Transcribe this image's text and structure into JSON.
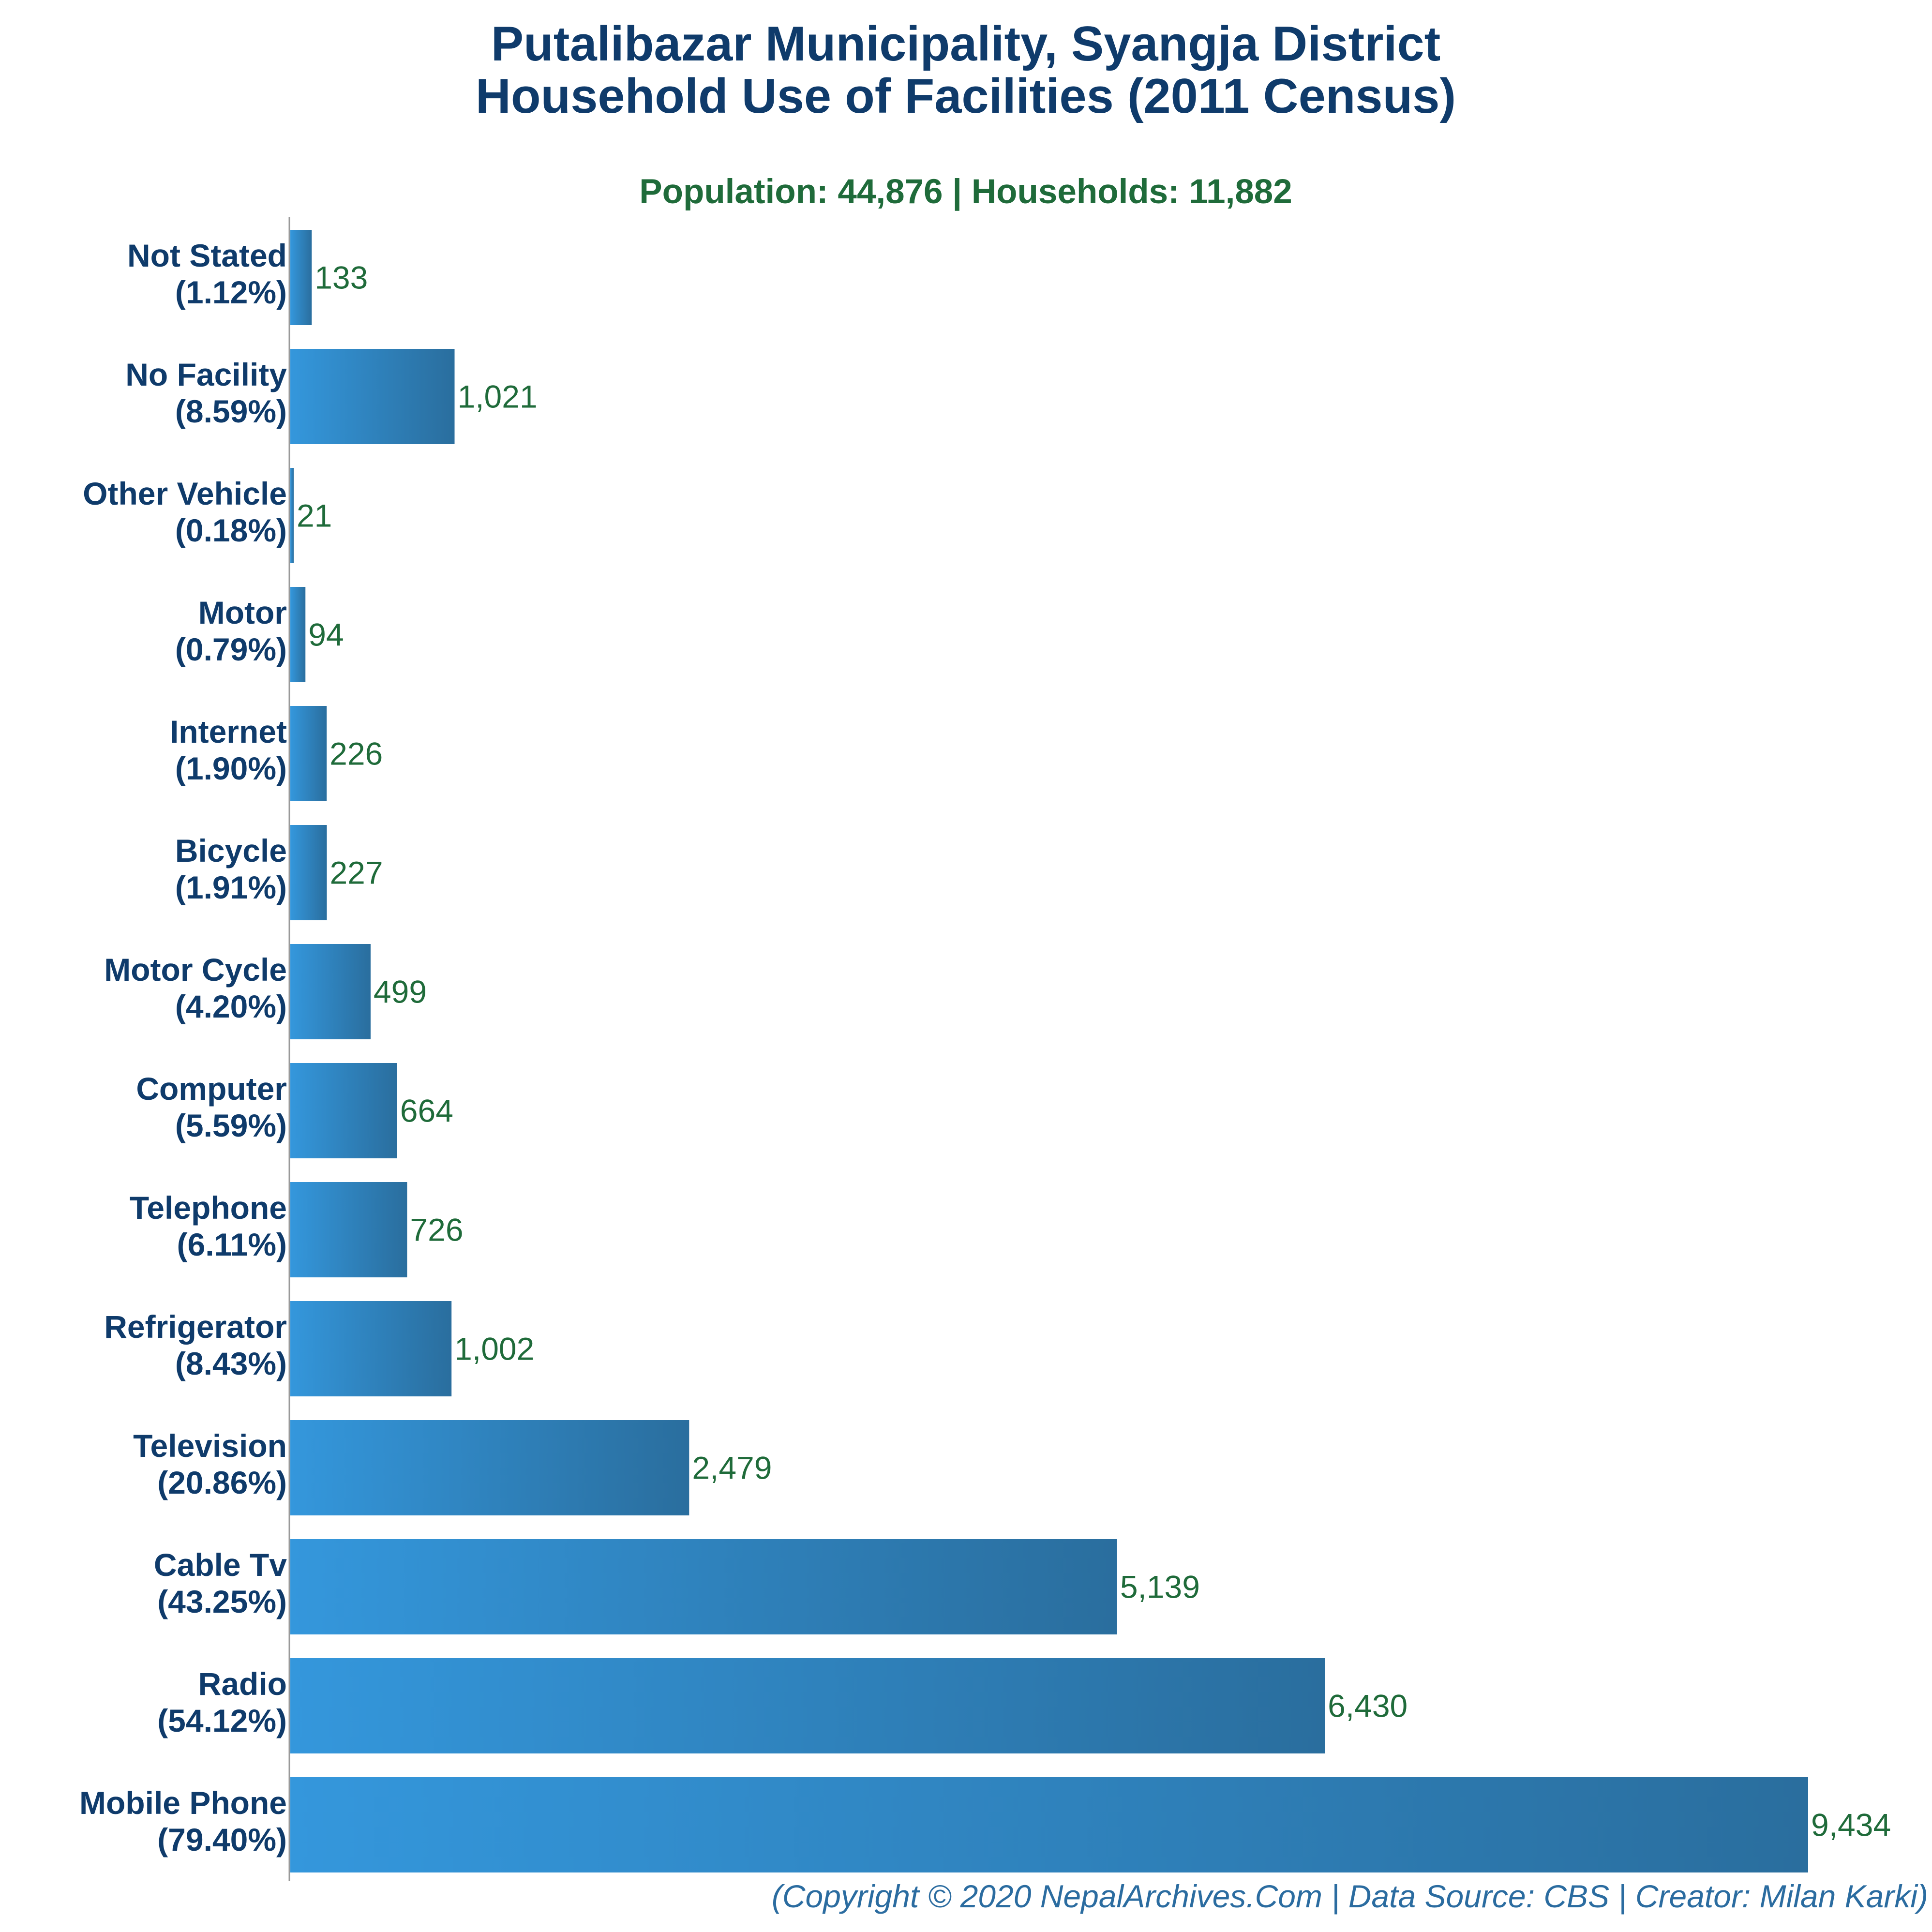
{
  "colors": {
    "title": "#0f3b6b",
    "subtitle": "#1f6b3a",
    "bar_start": "#3497dc",
    "bar_end": "#2a6e9e",
    "value_label": "#1f6b3a",
    "footer": "#2b6ca0",
    "axis": "#999999"
  },
  "chart_data": {
    "type": "bar",
    "orientation": "horizontal",
    "title": "Putalibazar Municipality, Syangja District",
    "title_line2": "Household Use of Facilities (2011 Census)",
    "subtitle": "Population: 44,876 | Households: 11,882",
    "categories": [
      "Not Stated",
      "No Facility",
      "Other Vehicle",
      "Motor",
      "Internet",
      "Bicycle",
      "Motor Cycle",
      "Computer",
      "Telephone",
      "Refrigerator",
      "Television",
      "Cable Tv",
      "Radio",
      "Mobile Phone"
    ],
    "percentages": [
      "(1.12%)",
      "(8.59%)",
      "(0.18%)",
      "(0.79%)",
      "(1.90%)",
      "(1.91%)",
      "(4.20%)",
      "(5.59%)",
      "(6.11%)",
      "(8.43%)",
      "(20.86%)",
      "(43.25%)",
      "(54.12%)",
      "(79.40%)"
    ],
    "values": [
      133,
      1021,
      21,
      94,
      226,
      227,
      499,
      664,
      726,
      1002,
      2479,
      5139,
      6430,
      9434
    ],
    "value_labels": [
      "133",
      "1,021",
      "21",
      "94",
      "226",
      "227",
      "499",
      "664",
      "726",
      "1,002",
      "2,479",
      "5,139",
      "6,430",
      "9,434"
    ],
    "xlim": [
      0,
      9434
    ],
    "grid": false,
    "legend": "none"
  },
  "footer": "(Copyright © 2020 NepalArchives.Com | Data Source: CBS | Creator: Milan Karki)"
}
